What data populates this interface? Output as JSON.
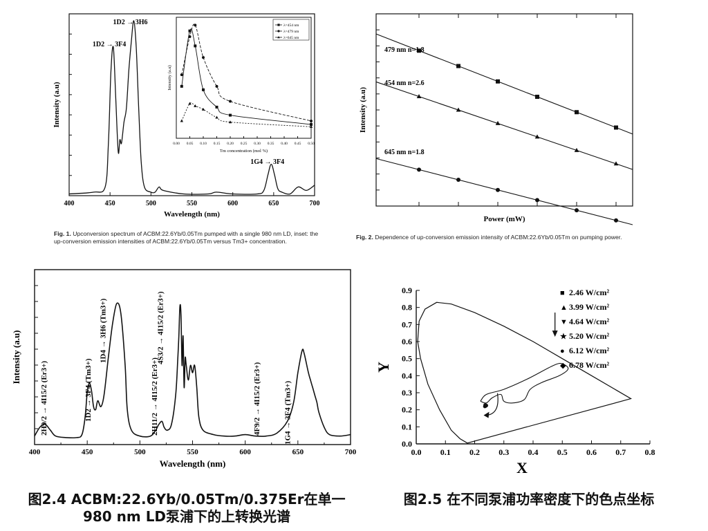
{
  "chart_data": [
    {
      "id": "fig1",
      "type": "line",
      "xlabel": "Wavelength (nm)",
      "ylabel": "Intensity (a.u)",
      "xlim": [
        400,
        700
      ],
      "x_ticks": [
        "400",
        "450",
        "500",
        "550",
        "600",
        "650",
        "700"
      ],
      "series": [
        {
          "x": [
            400,
            430,
            444,
            448,
            451,
            454,
            457,
            460,
            462,
            464,
            467,
            470,
            473,
            476,
            479,
            482,
            485,
            488,
            492,
            500,
            505,
            510,
            515,
            540,
            570,
            580,
            600,
            630,
            638,
            643,
            647,
            651,
            655,
            660,
            670,
            680,
            690,
            700
          ],
          "y": [
            0.01,
            0.02,
            0.05,
            0.3,
            0.7,
            0.85,
            0.55,
            0.25,
            0.32,
            0.3,
            0.42,
            0.5,
            0.72,
            0.88,
            1.0,
            0.85,
            0.5,
            0.2,
            0.05,
            0.02,
            0.02,
            0.05,
            0.03,
            0.01,
            0.01,
            0.02,
            0.01,
            0.01,
            0.03,
            0.12,
            0.18,
            0.12,
            0.04,
            0.02,
            0.01,
            0.05,
            0.03,
            0.06
          ]
        }
      ],
      "annotations": [
        {
          "label": "1D2 → 3F4",
          "at_nm": 454
        },
        {
          "label": "1D2 → 3H6",
          "at_nm": 479
        },
        {
          "label": "1G4 → 3F4",
          "at_nm": 647
        }
      ],
      "inset": {
        "xlabel": "Tm concentration (mol %)",
        "ylabel": "Intensity (a.u)",
        "xlim": [
          0,
          0.5
        ],
        "x_ticks": [
          "0.00",
          "0.05",
          "0.10",
          "0.15",
          "0.20",
          "0.25",
          "0.30",
          "0.35",
          "0.40",
          "0.45",
          "0.50"
        ],
        "legend": [
          "λ=454 nm",
          "λ=479 nm",
          "λ=645 nm"
        ],
        "x": [
          0.02,
          0.05,
          0.07,
          0.1,
          0.15,
          0.2,
          0.5
        ],
        "series": [
          {
            "name": "λ=454 nm",
            "marker": "square",
            "values": [
              0.45,
              0.93,
              0.8,
              0.42,
              0.27,
              0.2,
              0.12
            ]
          },
          {
            "name": "λ=479 nm",
            "marker": "circle",
            "values": [
              0.55,
              0.88,
              0.98,
              0.7,
              0.45,
              0.32,
              0.15
            ]
          },
          {
            "name": "λ=645 nm",
            "marker": "triangle",
            "values": [
              0.15,
              0.3,
              0.28,
              0.25,
              0.18,
              0.14,
              0.1
            ]
          }
        ]
      }
    },
    {
      "id": "fig2",
      "type": "scatter",
      "xlabel": "Power (mW)",
      "ylabel": "Intensity (a.u)",
      "scale": "log-log",
      "series": [
        {
          "label": "479 nm n=1.8",
          "marker": "square",
          "x": [
            0,
            1,
            2,
            3,
            4,
            5
          ],
          "y": [
            0.85,
            0.79,
            0.73,
            0.67,
            0.61,
            0.55
          ],
          "fit": [
            [
              -0.9,
              0.9
            ],
            [
              6.1,
              0.34
            ]
          ]
        },
        {
          "label": "454 nm n=2.6",
          "marker": "triangle",
          "x": [
            0,
            1,
            2,
            3,
            4,
            5
          ],
          "y": [
            0.6,
            0.53,
            0.46,
            0.39,
            0.32,
            0.25
          ],
          "fit": [
            [
              -0.9,
              0.65
            ],
            [
              6.1,
              0.16
            ]
          ]
        },
        {
          "label": "645 nm n=1.8",
          "marker": "circle",
          "x": [
            0,
            1,
            2,
            3,
            4,
            5
          ],
          "y": [
            0.22,
            0.18,
            0.14,
            0.1,
            0.06,
            0.02
          ],
          "fit": [
            [
              -0.9,
              0.25
            ],
            [
              6.1,
              -0.12
            ]
          ]
        }
      ]
    },
    {
      "id": "fig3",
      "type": "line",
      "xlabel": "Wavelength (nm)",
      "ylabel": "Intensity (a.u)",
      "xlim": [
        400,
        700
      ],
      "x_ticks": [
        "400",
        "450",
        "500",
        "550",
        "600",
        "650",
        "700"
      ],
      "series": [
        {
          "x": [
            400,
            405,
            410,
            415,
            420,
            430,
            440,
            445,
            448,
            450,
            452,
            454,
            456,
            458,
            460,
            463,
            466,
            470,
            474,
            478,
            482,
            486,
            488,
            492,
            500,
            510,
            515,
            518,
            521,
            523,
            526,
            530,
            534,
            536,
            537,
            538,
            539,
            540,
            541,
            542,
            543,
            544,
            546,
            548,
            550,
            552,
            554,
            556,
            560,
            570,
            580,
            590,
            600,
            610,
            620,
            630,
            640,
            646,
            650,
            654,
            656,
            660,
            662,
            664,
            666,
            668,
            670,
            675,
            680,
            690,
            700
          ],
          "y": [
            0.02,
            0.08,
            0.1,
            0.06,
            0.02,
            0.01,
            0.01,
            0.03,
            0.15,
            0.32,
            0.38,
            0.33,
            0.22,
            0.2,
            0.26,
            0.22,
            0.3,
            0.55,
            0.78,
            0.92,
            0.85,
            0.5,
            0.2,
            0.06,
            0.02,
            0.02,
            0.06,
            0.1,
            0.12,
            0.08,
            0.06,
            0.1,
            0.3,
            0.55,
            0.7,
            0.9,
            0.85,
            0.5,
            0.7,
            0.35,
            0.55,
            0.5,
            0.4,
            0.5,
            0.45,
            0.5,
            0.35,
            0.15,
            0.06,
            0.03,
            0.02,
            0.02,
            0.03,
            0.02,
            0.02,
            0.04,
            0.12,
            0.25,
            0.45,
            0.6,
            0.58,
            0.45,
            0.4,
            0.35,
            0.3,
            0.25,
            0.18,
            0.08,
            0.03,
            0.02,
            0.03
          ]
        }
      ],
      "annotations": [
        {
          "label": "2H9/2 → 4I15/2 (Er3+)",
          "at_nm": 410
        },
        {
          "label": "1D2 → 3F4 (Tm3+)",
          "at_nm": 454
        },
        {
          "label": "1D4 → 3H6 (Tm3+)",
          "at_nm": 478
        },
        {
          "label": "2H11/2 → 4I15/2 (Er3+)",
          "at_nm": 523
        },
        {
          "label": "4S3/2 → 4I15/2 (Er3+)",
          "at_nm": 545
        },
        {
          "label": "4F9/2 → 4I15/2 (Er3+)",
          "at_nm": 640
        },
        {
          "label": "1G4 → 3F4 (Tm3+)",
          "at_nm": 655
        }
      ]
    },
    {
      "id": "fig4",
      "type": "scatter",
      "xlabel": "X",
      "ylabel": "Y",
      "xlim": [
        0,
        0.8
      ],
      "ylim": [
        0,
        0.9
      ],
      "x_ticks": [
        "0.0",
        "0.1",
        "0.2",
        "0.3",
        "0.4",
        "0.5",
        "0.6",
        "0.7",
        "0.8"
      ],
      "y_ticks": [
        "0.0",
        "0.1",
        "0.2",
        "0.3",
        "0.4",
        "0.5",
        "0.6",
        "0.7",
        "0.8",
        "0.9"
      ],
      "legend": [
        {
          "marker": "■",
          "text": "2.46 W/cm²"
        },
        {
          "marker": "▲",
          "text": "3.99 W/cm²"
        },
        {
          "marker": "▼",
          "text": "4.64 W/cm²"
        },
        {
          "marker": "★",
          "text": "5.20 W/cm²"
        },
        {
          "marker": "●",
          "text": "6.12 W/cm²"
        },
        {
          "marker": "◆",
          "text": "6.78 W/cm²"
        }
      ],
      "points": [
        [
          0.235,
          0.22
        ],
        [
          0.237,
          0.222
        ],
        [
          0.238,
          0.224
        ],
        [
          0.24,
          0.225
        ],
        [
          0.238,
          0.226
        ],
        [
          0.236,
          0.228
        ]
      ],
      "locus": [
        [
          0.175,
          0.005
        ],
        [
          0.15,
          0.03
        ],
        [
          0.12,
          0.08
        ],
        [
          0.08,
          0.2
        ],
        [
          0.04,
          0.35
        ],
        [
          0.015,
          0.5
        ],
        [
          0.005,
          0.6
        ],
        [
          0.01,
          0.72
        ],
        [
          0.03,
          0.79
        ],
        [
          0.07,
          0.83
        ],
        [
          0.12,
          0.82
        ],
        [
          0.2,
          0.77
        ],
        [
          0.3,
          0.69
        ],
        [
          0.4,
          0.6
        ],
        [
          0.5,
          0.5
        ],
        [
          0.6,
          0.4
        ],
        [
          0.735,
          0.265
        ],
        [
          0.175,
          0.005
        ]
      ],
      "region": [
        [
          0.22,
          0.25
        ],
        [
          0.24,
          0.29
        ],
        [
          0.3,
          0.32
        ],
        [
          0.38,
          0.38
        ],
        [
          0.47,
          0.46
        ],
        [
          0.5,
          0.47
        ],
        [
          0.52,
          0.44
        ],
        [
          0.49,
          0.4
        ],
        [
          0.43,
          0.36
        ],
        [
          0.39,
          0.32
        ],
        [
          0.37,
          0.26
        ],
        [
          0.33,
          0.24
        ],
        [
          0.3,
          0.25
        ],
        [
          0.29,
          0.29
        ],
        [
          0.26,
          0.27
        ],
        [
          0.24,
          0.24
        ],
        [
          0.22,
          0.25
        ]
      ]
    }
  ],
  "captions": {
    "fig1": {
      "label": "Fig. 1.",
      "text": "Upconversion spectrum of ACBM:22.6Yb/0.05Tm pumped with a single 980 nm LD, inset: the up-conversion emission intensities of ACBM:22.6Yb/0.05Tm versus Tm3+ concentration."
    },
    "fig2": {
      "label": "Fig. 2.",
      "text": "Dependence of up-conversion emission intensity of ACBM:22.6Yb/0.05Tm on pumping power."
    },
    "fig3_cn": {
      "line1": "图2.4 ACBM:22.6Yb/0.05Tm/0.375Er在单一",
      "line2": "980 nm LD泵浦下的上转换光谱"
    },
    "fig4_cn": {
      "line1": "图2.5 在不同泵浦功率密度下的色点坐标"
    }
  }
}
